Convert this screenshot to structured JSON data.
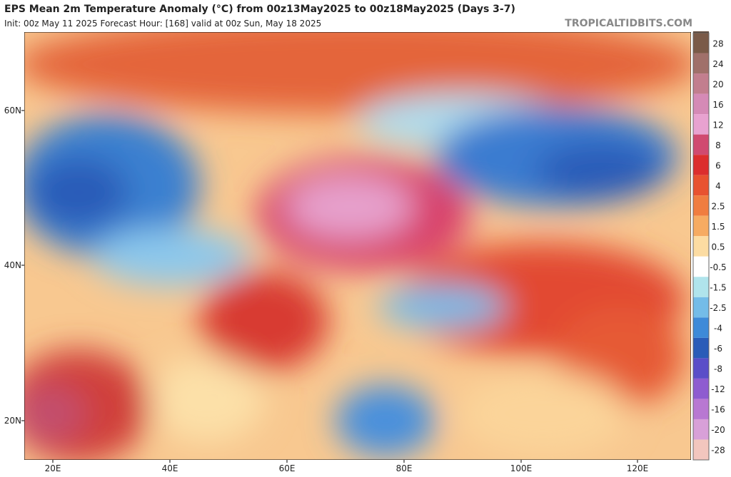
{
  "header": {
    "title": "EPS Mean 2m Temperature Anomaly (°C) from 00z13May2025 to 00z18May2025 (Days 3-7)",
    "subtitle": "Init: 00z May 11 2025   Forecast Hour: [168]   valid at 00z Sun, May 18 2025",
    "credit": "TROPICALTIDBITS.COM"
  },
  "axes": {
    "lat": [
      "60N",
      "40N",
      "20N"
    ],
    "lon": [
      "20E",
      "40E",
      "60E",
      "80E",
      "100E",
      "120E"
    ]
  },
  "colorbar": {
    "levels": [
      28,
      24,
      20,
      16,
      12,
      8,
      6,
      4,
      2.5,
      1.5,
      0.5,
      -0.5,
      -1.5,
      -2.5,
      -4,
      -6,
      -8,
      -12,
      -16,
      -20,
      -28
    ],
    "colors": [
      "#7a5a48",
      "#a0706a",
      "#c27e8e",
      "#d58ab6",
      "#e8a2d0",
      "#d04a70",
      "#dc2e2e",
      "#e85230",
      "#f07d40",
      "#f6ab62",
      "#fcdca2",
      "#ffffff",
      "#b0e4ec",
      "#74bce8",
      "#3e8ad8",
      "#2a5cb8",
      "#5a4ec8",
      "#8e5cd0",
      "#b878d2",
      "#d8a0d8",
      "#f2c6be"
    ]
  }
}
